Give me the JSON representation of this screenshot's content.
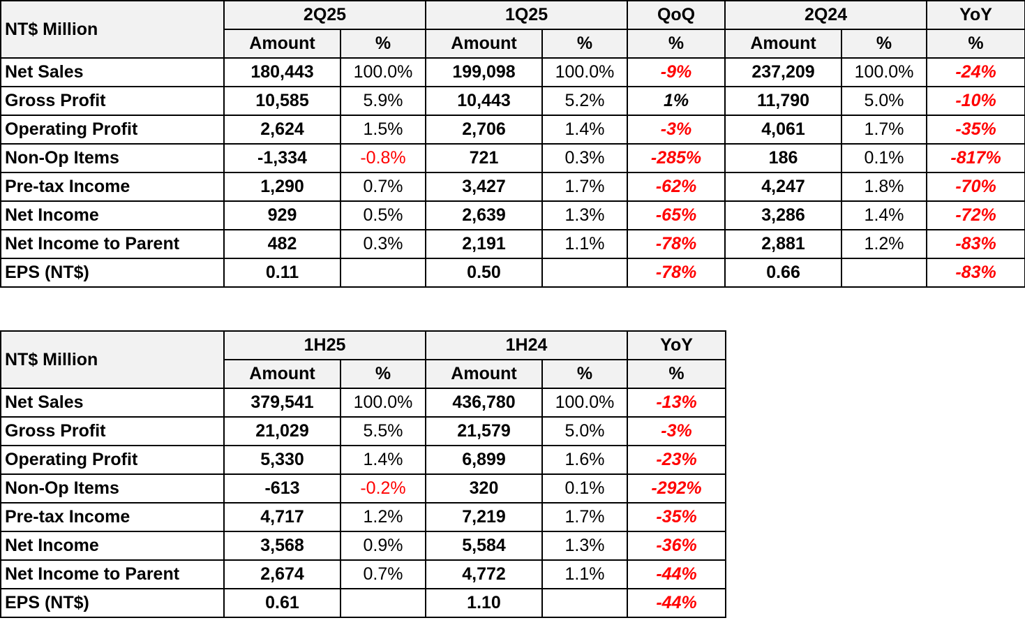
{
  "quarterly": {
    "corner": "NT$ Million",
    "periods": [
      "2Q25",
      "1Q25",
      "QoQ",
      "2Q24",
      "YoY"
    ],
    "subheaders": [
      "Amount",
      "%",
      "Amount",
      "%",
      "%",
      "Amount",
      "%",
      "%"
    ],
    "rows": [
      {
        "label": "Net Sales",
        "a1": "180,443",
        "p1": "100.0%",
        "a2": "199,098",
        "p2": "100.0%",
        "qoq": "-9%",
        "a3": "237,209",
        "p3": "100.0%",
        "yoy": "-24%"
      },
      {
        "label": "Gross Profit",
        "a1": "10,585",
        "p1": "5.9%",
        "a2": "10,443",
        "p2": "5.2%",
        "qoq": "1%",
        "a3": "11,790",
        "p3": "5.0%",
        "yoy": "-10%"
      },
      {
        "label": "Operating Profit",
        "a1": "2,624",
        "p1": "1.5%",
        "a2": "2,706",
        "p2": "1.4%",
        "qoq": "-3%",
        "a3": "4,061",
        "p3": "1.7%",
        "yoy": "-35%"
      },
      {
        "label": "Non-Op Items",
        "a1": "-1,334",
        "p1": "-0.8%",
        "a2": "721",
        "p2": "0.3%",
        "qoq": "-285%",
        "a3": "186",
        "p3": "0.1%",
        "yoy": "-817%"
      },
      {
        "label": "Pre-tax Income",
        "a1": "1,290",
        "p1": "0.7%",
        "a2": "3,427",
        "p2": "1.7%",
        "qoq": "-62%",
        "a3": "4,247",
        "p3": "1.8%",
        "yoy": "-70%"
      },
      {
        "label": "Net Income",
        "a1": "929",
        "p1": "0.5%",
        "a2": "2,639",
        "p2": "1.3%",
        "qoq": "-65%",
        "a3": "3,286",
        "p3": "1.4%",
        "yoy": "-72%"
      },
      {
        "label": "Net Income to Parent",
        "a1": "482",
        "p1": "0.3%",
        "a2": "2,191",
        "p2": "1.1%",
        "qoq": "-78%",
        "a3": "2,881",
        "p3": "1.2%",
        "yoy": "-83%"
      },
      {
        "label": "EPS (NT$)",
        "a1": "0.11",
        "p1": "",
        "a2": "0.50",
        "p2": "",
        "qoq": "-78%",
        "a3": "0.66",
        "p3": "",
        "yoy": "-83%"
      }
    ]
  },
  "halfyear": {
    "corner": "NT$ Million",
    "periods": [
      "1H25",
      "1H24",
      "YoY"
    ],
    "subheaders": [
      "Amount",
      "%",
      "Amount",
      "%",
      "%"
    ],
    "rows": [
      {
        "label": "Net Sales",
        "a1": "379,541",
        "p1": "100.0%",
        "a2": "436,780",
        "p2": "100.0%",
        "yoy": "-13%"
      },
      {
        "label": "Gross Profit",
        "a1": "21,029",
        "p1": "5.5%",
        "a2": "21,579",
        "p2": "5.0%",
        "yoy": "-3%"
      },
      {
        "label": "Operating Profit",
        "a1": "5,330",
        "p1": "1.4%",
        "a2": "6,899",
        "p2": "1.6%",
        "yoy": "-23%"
      },
      {
        "label": "Non-Op Items",
        "a1": "-613",
        "p1": "-0.2%",
        "a2": "320",
        "p2": "0.1%",
        "yoy": "-292%"
      },
      {
        "label": "Pre-tax Income",
        "a1": "4,717",
        "p1": "1.2%",
        "a2": "7,219",
        "p2": "1.7%",
        "yoy": "-35%"
      },
      {
        "label": "Net Income",
        "a1": "3,568",
        "p1": "0.9%",
        "a2": "5,584",
        "p2": "1.3%",
        "yoy": "-36%"
      },
      {
        "label": "Net Income to Parent",
        "a1": "2,674",
        "p1": "0.7%",
        "a2": "4,772",
        "p2": "1.1%",
        "yoy": "-44%"
      },
      {
        "label": "EPS (NT$)",
        "a1": "0.61",
        "p1": "",
        "a2": "1.10",
        "p2": "",
        "yoy": "-44%"
      }
    ]
  },
  "colors": {
    "negative": "#ff0000",
    "header_bg": "#f2f2f2",
    "border": "#000000"
  }
}
